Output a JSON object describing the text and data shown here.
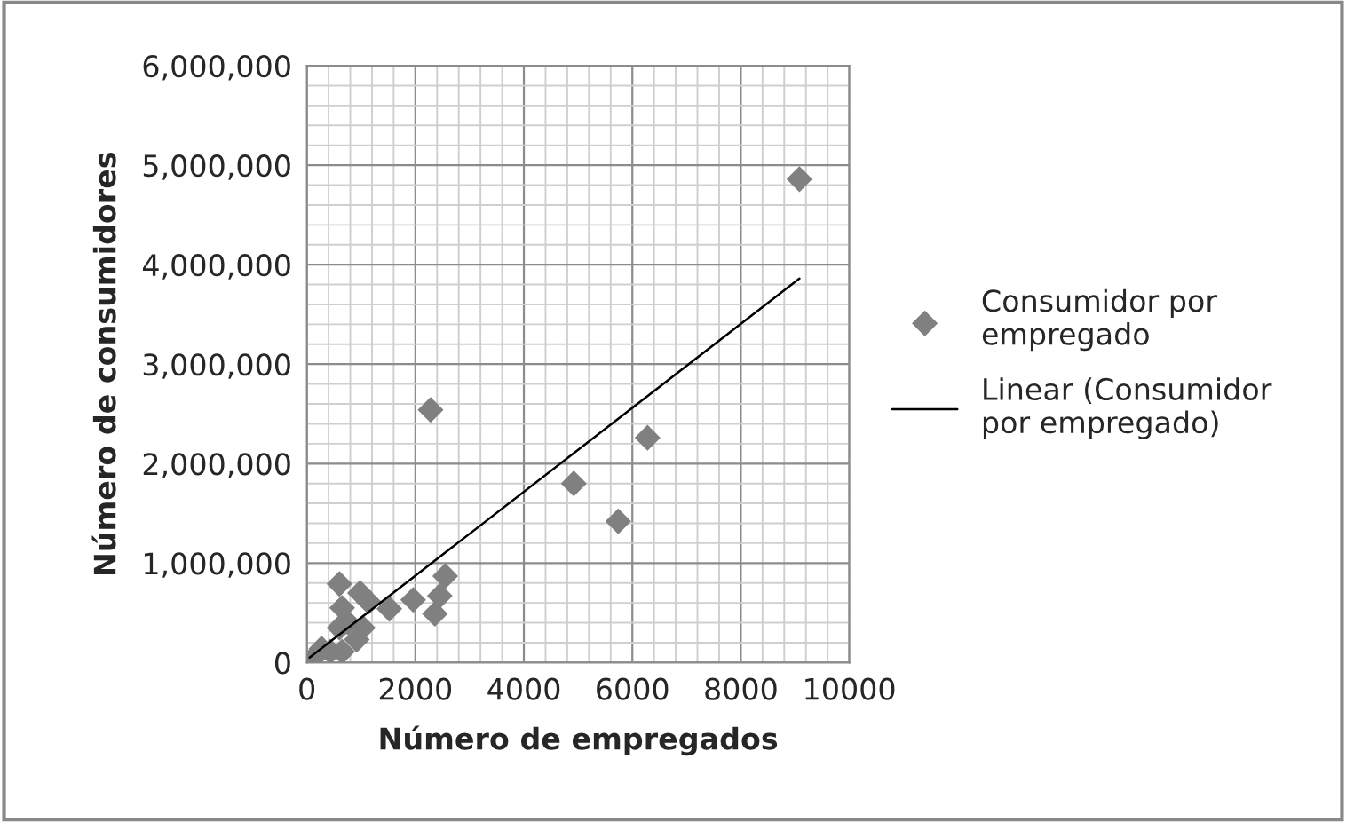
{
  "chart_data": {
    "type": "scatter",
    "xlabel": "Número de empregados",
    "ylabel": "Número de consumidores",
    "series": [
      {
        "name": "Consumidor por empregado",
        "color": "#808080",
        "marker": "diamond",
        "x": [
          110,
          270,
          430,
          600,
          650,
          760,
          920,
          1030,
          600,
          650,
          980,
          1140,
          1520,
          1960,
          2360,
          2450,
          2550,
          2280,
          4920,
          5740,
          6280,
          9080
        ],
        "values": [
          40000,
          140000,
          110000,
          350000,
          110000,
          400000,
          230000,
          350000,
          790000,
          550000,
          700000,
          610000,
          540000,
          630000,
          490000,
          670000,
          870000,
          2540000,
          1800000,
          1420000,
          2260000,
          4860000
        ]
      },
      {
        "name": "Linear (Consumidor por empregado)",
        "type": "line",
        "color": "#000000",
        "line_style": "solid",
        "marker": "none",
        "x": [
          50,
          9080
        ],
        "values": [
          50000,
          3860000
        ]
      }
    ],
    "xlim": [
      0,
      10000
    ],
    "xticks": [
      0,
      2000,
      4000,
      6000,
      8000,
      10000
    ],
    "ylim": [
      0,
      6000000
    ],
    "yticks": [
      {
        "value": 0,
        "label": "0"
      },
      {
        "value": 1000000,
        "label": "1,000,000"
      },
      {
        "value": 2000000,
        "label": "2,000,000"
      },
      {
        "value": 3000000,
        "label": "3,000,000"
      },
      {
        "value": 4000000,
        "label": "4,000,000"
      },
      {
        "value": 5000000,
        "label": "5,000,000"
      },
      {
        "value": 6000000,
        "label": "6,000,000"
      }
    ],
    "grid": true,
    "legend": "right"
  }
}
